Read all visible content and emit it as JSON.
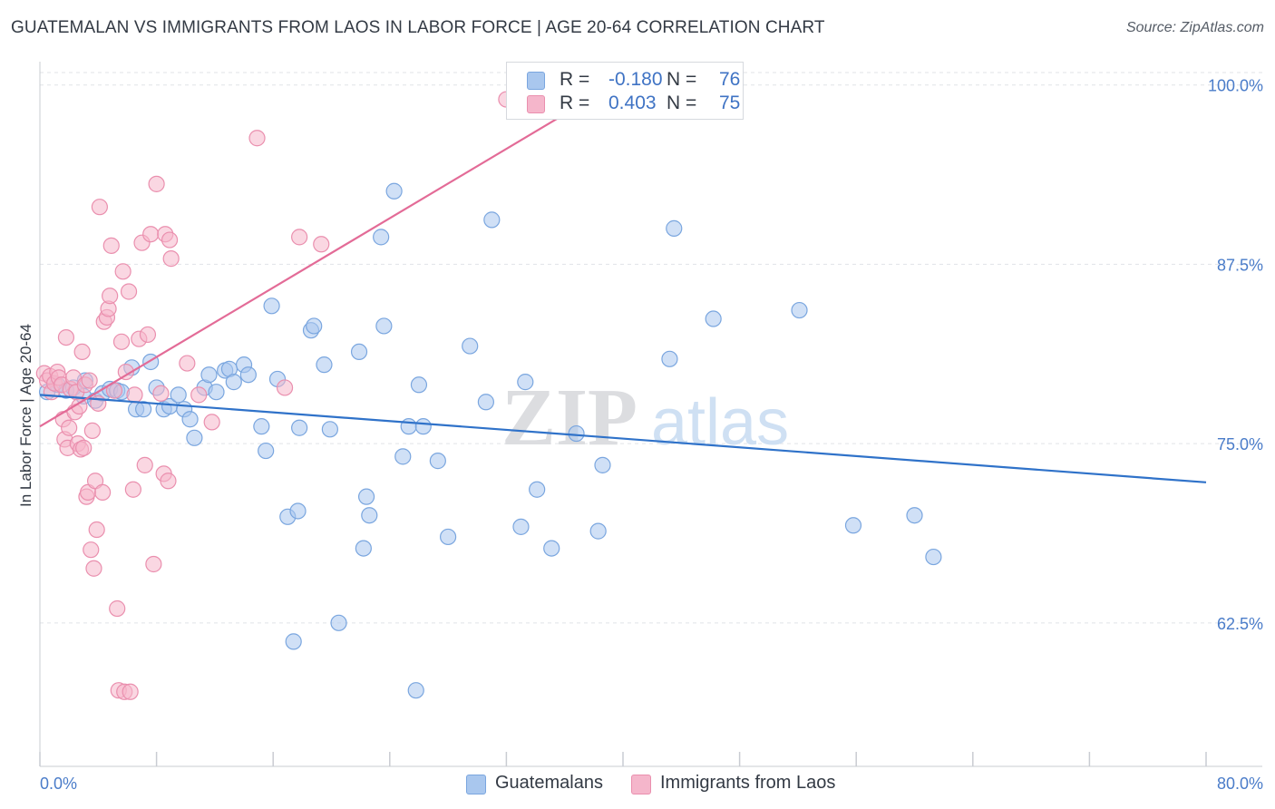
{
  "title": "GUATEMALAN VS IMMIGRANTS FROM LAOS IN LABOR FORCE | AGE 20-64 CORRELATION CHART",
  "source": "Source: ZipAtlas.com",
  "watermark": {
    "zip": "ZIP",
    "atlas": "atlas"
  },
  "legend": {
    "rows": [
      {
        "r_label": "R =",
        "r_value": "-0.180",
        "n_label": "N =",
        "n_value": "76",
        "color": "#a9c7ee"
      },
      {
        "r_label": "R =",
        "r_value": "0.403",
        "n_label": "N =",
        "n_value": "75",
        "color": "#f5b6cb"
      }
    ]
  },
  "bottom_legend": [
    {
      "label": "Guatemalans",
      "color": "#a9c7ee"
    },
    {
      "label": "Immigrants from Laos",
      "color": "#f5b6cb"
    }
  ],
  "chart_data": {
    "type": "scatter",
    "xlabel": "",
    "ylabel": "In Labor Force | Age 20-64",
    "xlim": [
      0,
      80
    ],
    "ylim": [
      52.5,
      101.5
    ],
    "x_tick_labels": [
      "0.0%",
      "80.0%"
    ],
    "y_ticks": [
      62.5,
      75.0,
      87.5,
      100.0
    ],
    "y_tick_labels": [
      "62.5%",
      "75.0%",
      "87.5%",
      "100.0%"
    ],
    "grid": "dashed horizontal",
    "series": [
      {
        "name": "Guatemalans",
        "color": "#a9c7ee",
        "stroke": "#7aa6df",
        "trend": {
          "x": [
            0,
            80
          ],
          "y": [
            78.4,
            72.3
          ],
          "color": "#2f72c9"
        },
        "points": [
          [
            0.5,
            78.6
          ],
          [
            1.2,
            79.1
          ],
          [
            1.8,
            78.7
          ],
          [
            2.3,
            78.9
          ],
          [
            3.0,
            78.3
          ],
          [
            3.1,
            79.4
          ],
          [
            3.8,
            78.0
          ],
          [
            4.3,
            78.5
          ],
          [
            4.8,
            78.8
          ],
          [
            5.3,
            78.7
          ],
          [
            5.6,
            78.6
          ],
          [
            6.3,
            80.3
          ],
          [
            6.6,
            77.4
          ],
          [
            7.1,
            77.4
          ],
          [
            7.6,
            80.7
          ],
          [
            8.0,
            78.9
          ],
          [
            8.5,
            77.4
          ],
          [
            8.9,
            77.6
          ],
          [
            9.5,
            78.4
          ],
          [
            9.9,
            77.4
          ],
          [
            10.3,
            76.7
          ],
          [
            10.6,
            75.4
          ],
          [
            11.3,
            78.9
          ],
          [
            11.6,
            79.8
          ],
          [
            12.1,
            78.6
          ],
          [
            12.7,
            80.1
          ],
          [
            13.0,
            80.2
          ],
          [
            13.3,
            79.3
          ],
          [
            14.0,
            80.5
          ],
          [
            14.3,
            79.8
          ],
          [
            15.2,
            76.2
          ],
          [
            15.5,
            74.5
          ],
          [
            15.9,
            84.6
          ],
          [
            16.3,
            79.5
          ],
          [
            17.0,
            69.9
          ],
          [
            17.4,
            61.2
          ],
          [
            17.7,
            70.3
          ],
          [
            17.8,
            76.1
          ],
          [
            18.6,
            82.9
          ],
          [
            18.8,
            83.2
          ],
          [
            19.5,
            80.5
          ],
          [
            19.9,
            76.0
          ],
          [
            20.5,
            62.5
          ],
          [
            21.9,
            81.4
          ],
          [
            22.2,
            67.7
          ],
          [
            22.4,
            71.3
          ],
          [
            22.6,
            70.0
          ],
          [
            23.4,
            89.4
          ],
          [
            23.6,
            83.2
          ],
          [
            24.3,
            92.6
          ],
          [
            24.9,
            74.1
          ],
          [
            25.3,
            76.2
          ],
          [
            25.8,
            57.8
          ],
          [
            26.0,
            79.1
          ],
          [
            26.3,
            76.2
          ],
          [
            27.3,
            73.8
          ],
          [
            28.0,
            68.5
          ],
          [
            29.5,
            81.8
          ],
          [
            30.6,
            77.9
          ],
          [
            31.0,
            90.6
          ],
          [
            33.0,
            69.2
          ],
          [
            33.3,
            79.3
          ],
          [
            34.1,
            71.8
          ],
          [
            35.1,
            67.7
          ],
          [
            36.8,
            75.7
          ],
          [
            38.3,
            68.9
          ],
          [
            38.6,
            73.5
          ],
          [
            43.2,
            80.9
          ],
          [
            43.5,
            90.0
          ],
          [
            46.2,
            83.7
          ],
          [
            52.1,
            84.3
          ],
          [
            55.8,
            69.3
          ],
          [
            60.0,
            70.0
          ],
          [
            61.3,
            67.1
          ]
        ]
      },
      {
        "name": "Immigrants from Laos",
        "color": "#f5b6cb",
        "stroke": "#ea8fae",
        "trend": {
          "x": [
            0,
            38.7
          ],
          "y": [
            76.2,
            99.6
          ],
          "color": "#e36b97"
        },
        "points": [
          [
            0.3,
            79.9
          ],
          [
            0.5,
            79.4
          ],
          [
            0.7,
            79.7
          ],
          [
            0.8,
            78.6
          ],
          [
            1.0,
            79.2
          ],
          [
            1.2,
            80.0
          ],
          [
            1.3,
            79.6
          ],
          [
            1.5,
            79.1
          ],
          [
            1.6,
            76.7
          ],
          [
            1.7,
            75.3
          ],
          [
            1.8,
            82.4
          ],
          [
            1.9,
            74.7
          ],
          [
            2.0,
            76.1
          ],
          [
            2.1,
            78.8
          ],
          [
            2.3,
            79.6
          ],
          [
            2.4,
            77.2
          ],
          [
            2.5,
            78.6
          ],
          [
            2.6,
            75.0
          ],
          [
            2.7,
            77.6
          ],
          [
            2.8,
            74.6
          ],
          [
            2.9,
            81.4
          ],
          [
            3.0,
            74.7
          ],
          [
            3.1,
            79.1
          ],
          [
            3.2,
            71.3
          ],
          [
            3.3,
            71.6
          ],
          [
            3.4,
            79.4
          ],
          [
            3.5,
            67.6
          ],
          [
            3.6,
            75.9
          ],
          [
            3.7,
            66.3
          ],
          [
            3.8,
            72.4
          ],
          [
            3.9,
            69.0
          ],
          [
            4.0,
            77.8
          ],
          [
            4.1,
            91.5
          ],
          [
            4.3,
            71.6
          ],
          [
            4.4,
            83.5
          ],
          [
            4.6,
            83.8
          ],
          [
            4.7,
            84.4
          ],
          [
            4.8,
            85.3
          ],
          [
            4.9,
            88.8
          ],
          [
            5.1,
            78.7
          ],
          [
            5.3,
            63.5
          ],
          [
            5.4,
            57.8
          ],
          [
            5.6,
            82.1
          ],
          [
            5.7,
            87.0
          ],
          [
            5.8,
            57.7
          ],
          [
            5.9,
            80.0
          ],
          [
            6.1,
            85.6
          ],
          [
            6.2,
            57.7
          ],
          [
            6.4,
            71.8
          ],
          [
            6.5,
            78.4
          ],
          [
            6.8,
            82.3
          ],
          [
            7.0,
            89.0
          ],
          [
            7.2,
            73.5
          ],
          [
            7.4,
            82.6
          ],
          [
            7.6,
            89.6
          ],
          [
            7.8,
            66.6
          ],
          [
            8.0,
            93.1
          ],
          [
            8.3,
            78.5
          ],
          [
            8.5,
            72.9
          ],
          [
            8.6,
            89.6
          ],
          [
            8.8,
            72.4
          ],
          [
            8.9,
            89.2
          ],
          [
            9.0,
            87.9
          ],
          [
            10.1,
            80.6
          ],
          [
            10.9,
            78.4
          ],
          [
            11.8,
            76.5
          ],
          [
            14.9,
            96.3
          ],
          [
            16.8,
            78.9
          ],
          [
            17.8,
            89.4
          ],
          [
            19.3,
            88.9
          ],
          [
            32.0,
            99.0
          ]
        ]
      }
    ]
  }
}
